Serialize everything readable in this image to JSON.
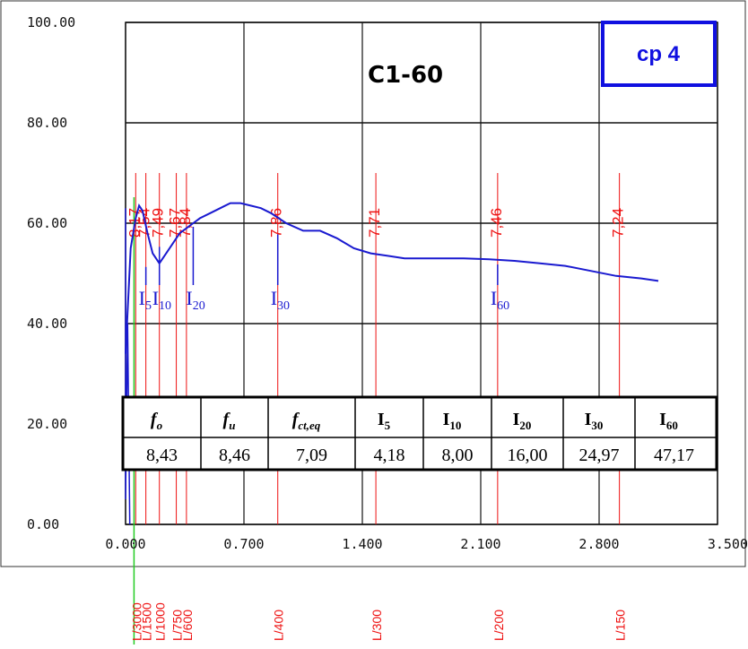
{
  "chart_data": {
    "type": "line",
    "title": "C1-60",
    "badge": "cp 4",
    "xlim": [
      0,
      3.5
    ],
    "ylim": [
      0,
      100
    ],
    "x_ticks": [
      "0.000",
      "0.700",
      "1.400",
      "2.100",
      "2.800",
      "3.500"
    ],
    "y_ticks": [
      "0.00",
      "20.00",
      "40.00",
      "60.00",
      "80.00",
      "100.00"
    ],
    "grid": true,
    "series": [
      {
        "color": "#1a1ad0",
        "x": [
          0.0,
          0.03,
          0.06,
          0.08,
          0.1,
          0.13,
          0.16,
          0.2,
          0.24,
          0.28,
          0.32,
          0.36,
          0.4,
          0.44,
          0.5,
          0.56,
          0.62,
          0.68,
          0.74,
          0.8,
          0.86,
          0.95,
          1.05,
          1.15,
          1.25,
          1.35,
          1.45,
          1.55,
          1.65,
          1.75,
          1.85,
          2.0,
          2.15,
          2.3,
          2.45,
          2.6,
          2.75,
          2.9,
          3.05,
          3.15
        ],
        "y": [
          34,
          55,
          61,
          63.5,
          62.5,
          58,
          54,
          52,
          54,
          56,
          58,
          59,
          60,
          61,
          62,
          63,
          64,
          64,
          63.5,
          63,
          62,
          60,
          58.5,
          58.5,
          57,
          55,
          54,
          53.5,
          53,
          53,
          53,
          53,
          52.8,
          52.5,
          52,
          51.5,
          50.5,
          49.5,
          49,
          48.5
        ]
      },
      {
        "color": "#1a1ad0",
        "x": [
          0.0,
          0.0,
          0.012,
          0.025
        ],
        "y": [
          63,
          5,
          40,
          0
        ]
      }
    ],
    "green_line": {
      "x": 0.05,
      "color": "#22cc22"
    },
    "vertical_markers": [
      {
        "x": 0.06,
        "label": "L/3000",
        "value": "8,17"
      },
      {
        "x": 0.12,
        "label": "L/1500",
        "value": "7,54"
      },
      {
        "x": 0.2,
        "label": "L/1000",
        "value": "7,49"
      },
      {
        "x": 0.3,
        "label": "L/750",
        "value": "7,67"
      },
      {
        "x": 0.36,
        "label": "L/600",
        "value": "7,84"
      },
      {
        "x": 0.9,
        "label": "L/400",
        "value": "7,86"
      },
      {
        "x": 1.48,
        "label": "L/300",
        "value": "7,71"
      },
      {
        "x": 2.2,
        "label": "L/200",
        "value": "7,46"
      },
      {
        "x": 2.92,
        "label": "L/150",
        "value": "7,24"
      }
    ],
    "index_markers": [
      {
        "x": 0.12,
        "y": 52,
        "label": "I",
        "sub": "5"
      },
      {
        "x": 0.2,
        "y": 56,
        "label": "I",
        "sub": "10"
      },
      {
        "x": 0.4,
        "y": 60,
        "label": "I",
        "sub": "20"
      },
      {
        "x": 0.9,
        "y": 58.5,
        "label": "I",
        "sub": "30"
      },
      {
        "x": 2.2,
        "y": 52.5,
        "label": "I",
        "sub": "60"
      }
    ],
    "table": {
      "headers": [
        {
          "main": "f",
          "sub": "o",
          "italic": true
        },
        {
          "main": "f",
          "sub": "u",
          "italic": true
        },
        {
          "main": "f",
          "sub": "ct,eq",
          "italic": true
        },
        {
          "main": "I",
          "sub": "5",
          "italic": false
        },
        {
          "main": "I",
          "sub": "10",
          "italic": false
        },
        {
          "main": "I",
          "sub": "20",
          "italic": false
        },
        {
          "main": "I",
          "sub": "30",
          "italic": false
        },
        {
          "main": "I",
          "sub": "60",
          "italic": false
        }
      ],
      "values": [
        "8,43",
        "8,46",
        "7,09",
        "4,18",
        "8,00",
        "16,00",
        "24,97",
        "47,17"
      ]
    }
  }
}
